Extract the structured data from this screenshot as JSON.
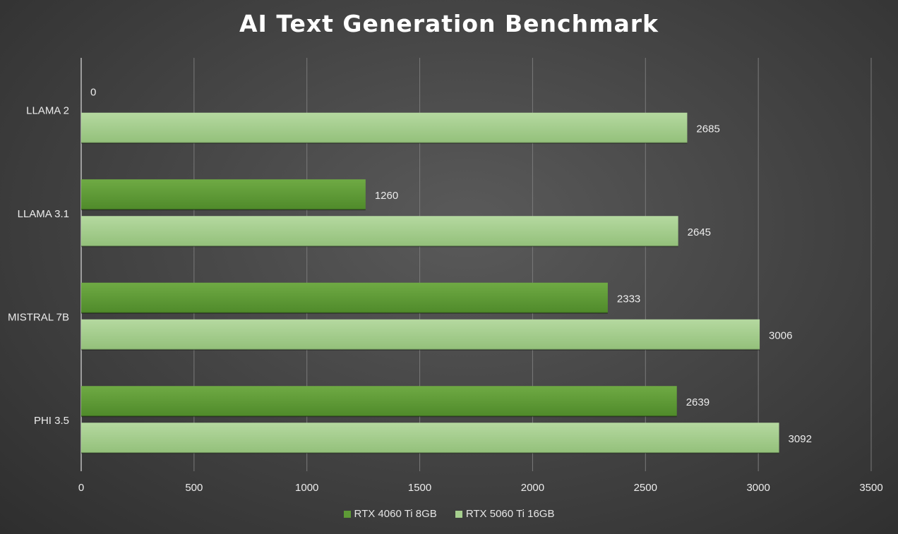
{
  "chart_data": {
    "type": "bar",
    "orientation": "horizontal",
    "title": "AI Text Generation Benchmark",
    "categories": [
      "LLAMA 2",
      "LLAMA 3.1",
      "MISTRAL 7B",
      "PHI 3.5"
    ],
    "series": [
      {
        "name": "RTX 4060 Ti 8GB",
        "values": [
          0,
          1260,
          2333,
          2639
        ],
        "color": "#5e9a36"
      },
      {
        "name": "RTX 5060 Ti 16GB",
        "values": [
          2685,
          2645,
          3006,
          3092
        ],
        "color": "#a6cf8e"
      }
    ],
    "xlim": [
      0,
      3500
    ],
    "xticks": [
      0,
      500,
      1000,
      1500,
      2000,
      2500,
      3000,
      3500
    ],
    "xlabel": "",
    "ylabel": "",
    "grid": true,
    "data_labels": true,
    "legend_position": "bottom"
  }
}
